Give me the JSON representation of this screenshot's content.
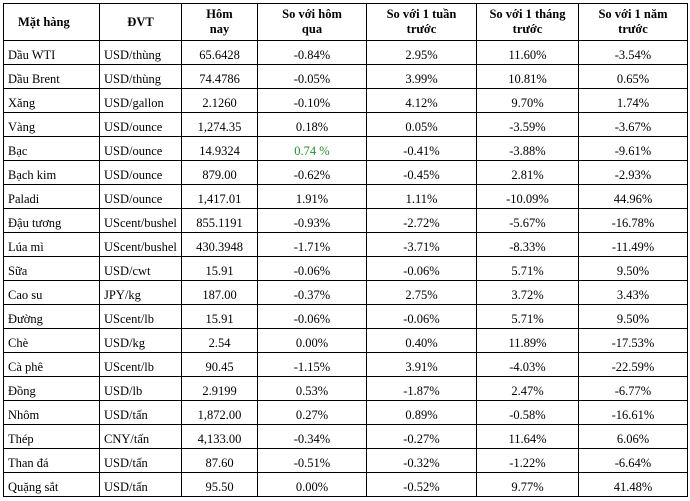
{
  "headers": [
    "Mặt hàng",
    "ĐVT",
    "Hôm nay",
    "So với hôm qua",
    "So với 1 tuần trước",
    "So với 1 tháng trước",
    "So với 1 năm trước"
  ],
  "highlight_color": "#2a8a2a",
  "rows": [
    {
      "name": "Dầu WTI",
      "unit": "USD/thùng",
      "today": "65.6428",
      "d1": "-0.84%",
      "w1": "2.95%",
      "m1": "11.60%",
      "y1": "-3.54%"
    },
    {
      "name": "Dầu Brent",
      "unit": "USD/thùng",
      "today": "74.4786",
      "d1": "-0.05%",
      "w1": "3.99%",
      "m1": "10.81%",
      "y1": "0.65%"
    },
    {
      "name": "Xăng",
      "unit": "USD/gallon",
      "today": "2.1260",
      "d1": "-0.10%",
      "w1": "4.12%",
      "m1": "9.70%",
      "y1": "1.74%"
    },
    {
      "name": "Vàng",
      "unit": "USD/ounce",
      "today": "1,274.35",
      "d1": "0.18%",
      "w1": "0.05%",
      "m1": "-3.59%",
      "y1": "-3.67%"
    },
    {
      "name": "Bạc",
      "unit": "USD/ounce",
      "today": "14.9324",
      "d1": "0.74 %",
      "w1": "-0.41%",
      "m1": "-3.88%",
      "y1": "-9.61%",
      "d1_green": true
    },
    {
      "name": "Bạch kim",
      "unit": "USD/ounce",
      "today": "879.00",
      "d1": "-0.62%",
      "w1": "-0.45%",
      "m1": "2.81%",
      "y1": "-2.93%"
    },
    {
      "name": "Paladi",
      "unit": "USD/ounce",
      "today": "1,417.01",
      "d1": "1.91%",
      "w1": "1.11%",
      "m1": "-10.09%",
      "y1": "44.96%"
    },
    {
      "name": "Đậu tương",
      "unit": "UScent/bushel",
      "today": "855.1191",
      "d1": "-0.93%",
      "w1": "-2.72%",
      "m1": "-5.67%",
      "y1": "-16.78%"
    },
    {
      "name": "Lúa mì",
      "unit": "UScent/bushel",
      "today": "430.3948",
      "d1": "-1.71%",
      "w1": "-3.71%",
      "m1": "-8.33%",
      "y1": "-11.49%"
    },
    {
      "name": "Sữa",
      "unit": "USD/cwt",
      "today": "15.91",
      "d1": "-0.06%",
      "w1": "-0.06%",
      "m1": "5.71%",
      "y1": "9.50%"
    },
    {
      "name": "Cao su",
      "unit": "JPY/kg",
      "today": "187.00",
      "d1": "-0.37%",
      "w1": "2.75%",
      "m1": "3.72%",
      "y1": "3.43%"
    },
    {
      "name": "Đường",
      "unit": "UScent/lb",
      "today": "15.91",
      "d1": "-0.06%",
      "w1": "-0.06%",
      "m1": "5.71%",
      "y1": "9.50%"
    },
    {
      "name": "Chè",
      "unit": "USD/kg",
      "today": "2.54",
      "d1": "0.00%",
      "w1": "0.40%",
      "m1": "11.89%",
      "y1": "-17.53%"
    },
    {
      "name": "Cà phê",
      "unit": "UScent/lb",
      "today": "90.45",
      "d1": "-1.15%",
      "w1": "3.91%",
      "m1": "-4.03%",
      "y1": "-22.59%"
    },
    {
      "name": "Đồng",
      "unit": "USD/lb",
      "today": "2.9199",
      "d1": "0.53%",
      "w1": "-1.87%",
      "m1": "2.47%",
      "y1": "-6.77%"
    },
    {
      "name": "Nhôm",
      "unit": "USD/tấn",
      "today": "1,872.00",
      "d1": "0.27%",
      "w1": "0.89%",
      "m1": "-0.58%",
      "y1": "-16.61%"
    },
    {
      "name": "Thép",
      "unit": "CNY/tấn",
      "today": "4,133.00",
      "d1": "-0.34%",
      "w1": "-0.27%",
      "m1": "11.64%",
      "y1": "6.06%"
    },
    {
      "name": "Than đá",
      "unit": "USD/tấn",
      "today": "87.60",
      "d1": "-0.51%",
      "w1": "-0.32%",
      "m1": "-1.22%",
      "y1": "-6.64%"
    },
    {
      "name": "Quặng sắt",
      "unit": "USD/tấn",
      "today": "95.50",
      "d1": "0.00%",
      "w1": "-0.52%",
      "m1": "9.77%",
      "y1": "41.48%"
    }
  ]
}
